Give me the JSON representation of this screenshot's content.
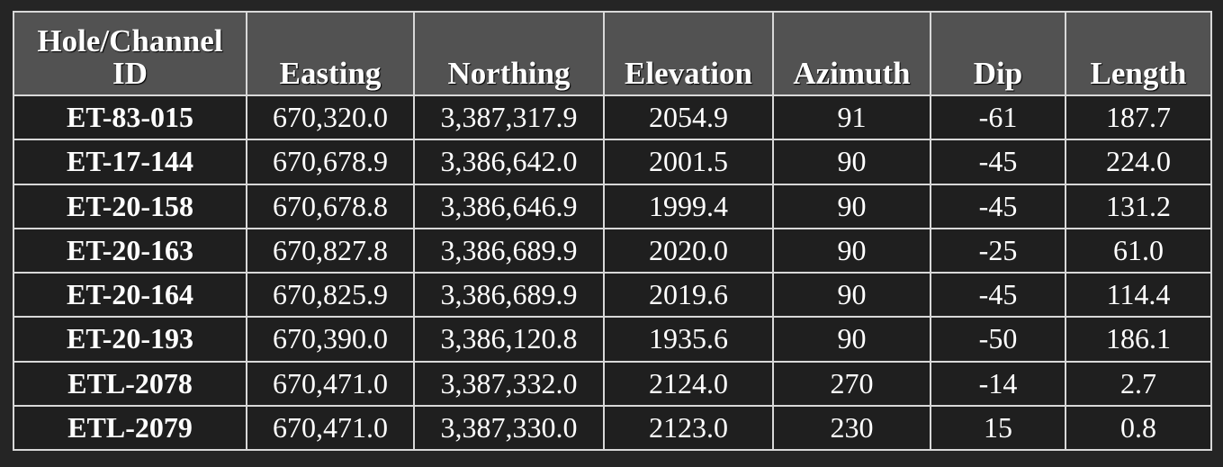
{
  "table": {
    "headers": [
      "Hole/Channel ID",
      "Easting",
      "Northing",
      "Elevation",
      "Azimuth",
      "Dip",
      "Length"
    ],
    "header_line1": "Hole/Channel",
    "header_line2": "ID",
    "rows": [
      [
        "ET-83-015",
        "670,320.0",
        "3,387,317.9",
        "2054.9",
        "91",
        "-61",
        "187.7"
      ],
      [
        "ET-17-144",
        "670,678.9",
        "3,386,642.0",
        "2001.5",
        "90",
        "-45",
        "224.0"
      ],
      [
        "ET-20-158",
        "670,678.8",
        "3,386,646.9",
        "1999.4",
        "90",
        "-45",
        "131.2"
      ],
      [
        "ET-20-163",
        "670,827.8",
        "3,386,689.9",
        "2020.0",
        "90",
        "-25",
        "61.0"
      ],
      [
        "ET-20-164",
        "670,825.9",
        "3,386,689.9",
        "2019.6",
        "90",
        "-45",
        "114.4"
      ],
      [
        "ET-20-193",
        "670,390.0",
        "3,386,120.8",
        "1935.6",
        "90",
        "-50",
        "186.1"
      ],
      [
        "ETL-2078",
        "670,471.0",
        "3,387,332.0",
        "2124.0",
        "270",
        "-14",
        "2.7"
      ],
      [
        "ETL-2079",
        "670,471.0",
        "3,387,330.0",
        "2123.0",
        "230",
        "15",
        "0.8"
      ]
    ]
  },
  "colors": {
    "page_background": "#252525",
    "header_background": "#525252",
    "body_background": "#1f1f1f",
    "grid_lines": "#d8d8d8",
    "text": "#ffffff"
  }
}
